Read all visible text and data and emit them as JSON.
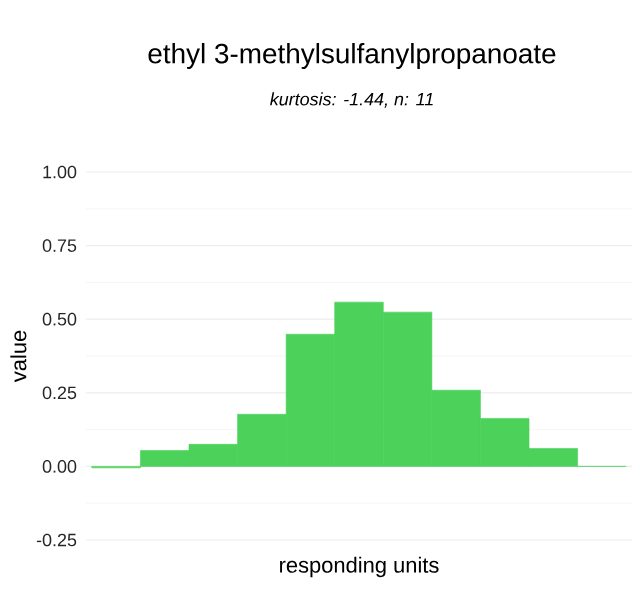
{
  "chart_data": {
    "type": "bar",
    "title": "ethyl 3-methylsulfanylpropanoate",
    "subtitle": "*kurtosis: -1.44, n: 11*",
    "xlabel": "responding units",
    "ylabel": "value",
    "categories": [
      null,
      null,
      null,
      null,
      null,
      null,
      null,
      null,
      null,
      null,
      null
    ],
    "values": [
      -0.005,
      0.054,
      0.075,
      0.177,
      0.449,
      0.558,
      0.524,
      0.259,
      0.163,
      0.061,
      0
    ],
    "color": "#4cd15a",
    "ylim": [
      -0.25,
      1
    ],
    "yticks": [
      {
        "value": -0.25,
        "label": "-0.25"
      },
      {
        "value": 0,
        "label": "0.00"
      },
      {
        "value": 0.25,
        "label": "0.25"
      },
      {
        "value": 0.5,
        "label": "0.50"
      },
      {
        "value": 0.75,
        "label": "0.75"
      },
      {
        "value": 1,
        "label": "1.00"
      }
    ],
    "grid": "y"
  }
}
